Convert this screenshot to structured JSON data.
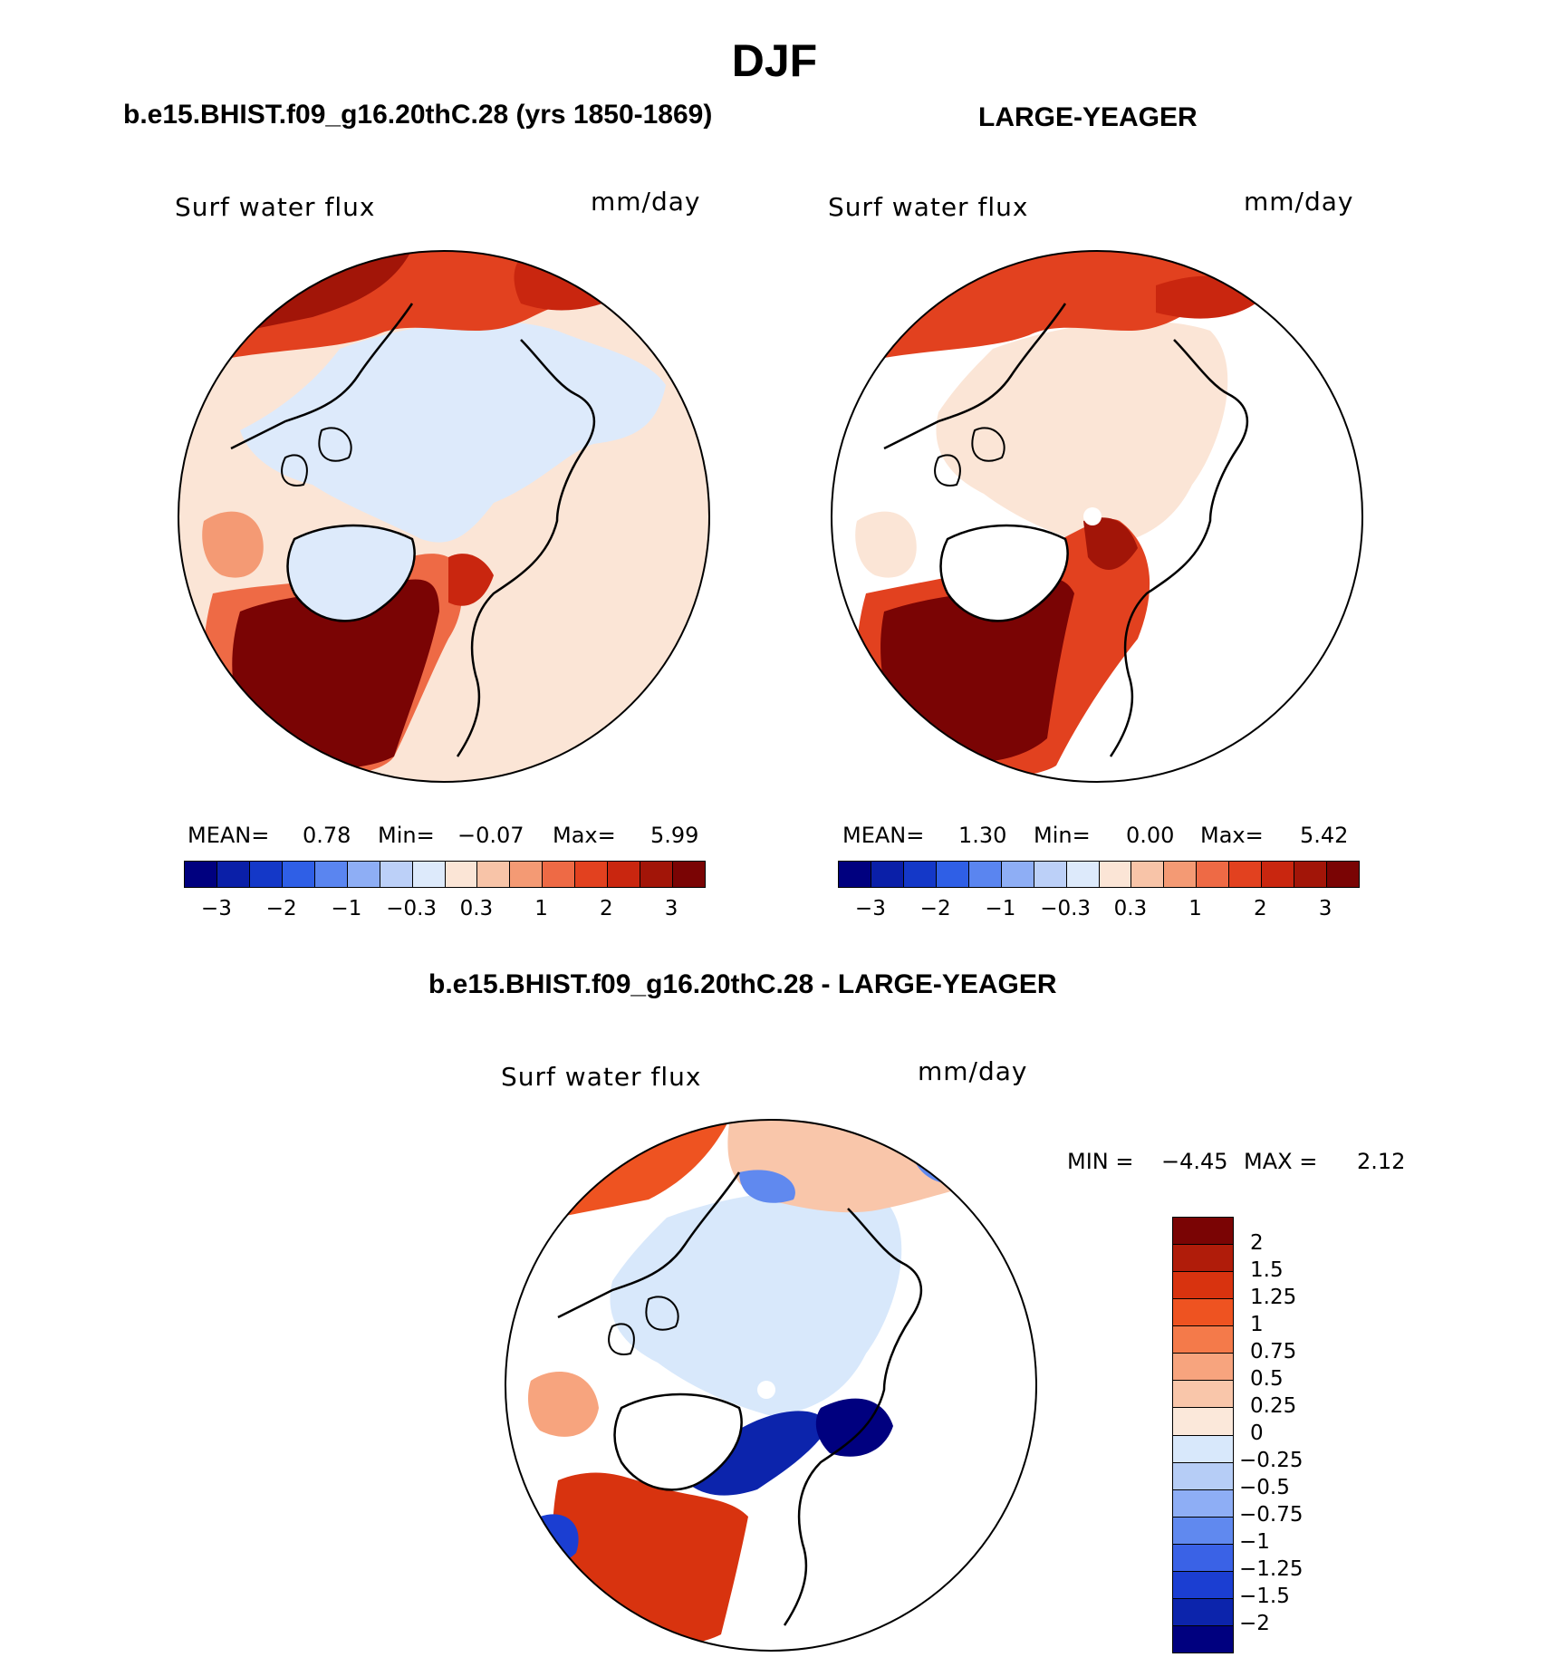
{
  "season": "DJF",
  "panels": [
    {
      "run_title": "b.e15.BHIST.f09_g16.20thC.28 (yrs 1850-1869)",
      "variable": "Surf water flux",
      "units": "mm/day",
      "stats": {
        "mean_label": "MEAN=",
        "mean": "0.78",
        "min_label": "Min=",
        "min": "−0.07",
        "max_label": "Max=",
        "max": "5.99"
      }
    },
    {
      "run_title": "LARGE-YEAGER",
      "variable": "Surf water flux",
      "units": "mm/day",
      "stats": {
        "mean_label": "MEAN=",
        "mean": "1.30",
        "min_label": "Min=",
        "min": "0.00",
        "max_label": "Max=",
        "max": "5.42"
      }
    }
  ],
  "horizontal_colorbar": {
    "tick_labels": [
      "−3",
      "−2",
      "−1",
      "−0.3",
      "0.3",
      "1",
      "2",
      "3"
    ],
    "colors": [
      "#00007f",
      "#0a1fa8",
      "#1438c8",
      "#2f5fe6",
      "#5a85f0",
      "#8eaef5",
      "#bcd0f8",
      "#ddeafb",
      "#fbe5d6",
      "#f8c4a8",
      "#f49a74",
      "#ee6a45",
      "#e2411f",
      "#c9260f",
      "#a21508",
      "#7a0404"
    ]
  },
  "difference_panel": {
    "title": "b.e15.BHIST.f09_g16.20thC.28 - LARGE-YEAGER",
    "variable": "Surf water flux",
    "units": "mm/day",
    "stats_text": {
      "min_label": "MIN =",
      "min": "−4.45",
      "max_label": "MAX =",
      "max": "2.12"
    },
    "colorbar": {
      "tick_labels": [
        "2",
        "1.5",
        "1.25",
        "1",
        "0.75",
        "0.5",
        "0.25",
        "0",
        "−0.25",
        "−0.5",
        "−0.75",
        "−1",
        "−1.25",
        "−1.5",
        "−2"
      ],
      "colors_top_to_bottom": [
        "#7a0404",
        "#b01c0a",
        "#d8330f",
        "#ee5321",
        "#f47a4a",
        "#f7a47e",
        "#f9c6aa",
        "#fbe8da",
        "#d8e8fb",
        "#b6cdf6",
        "#8eaef5",
        "#6089ef",
        "#3a62e6",
        "#1b3ed2",
        "#0c24ac",
        "#00007f"
      ]
    }
  }
}
